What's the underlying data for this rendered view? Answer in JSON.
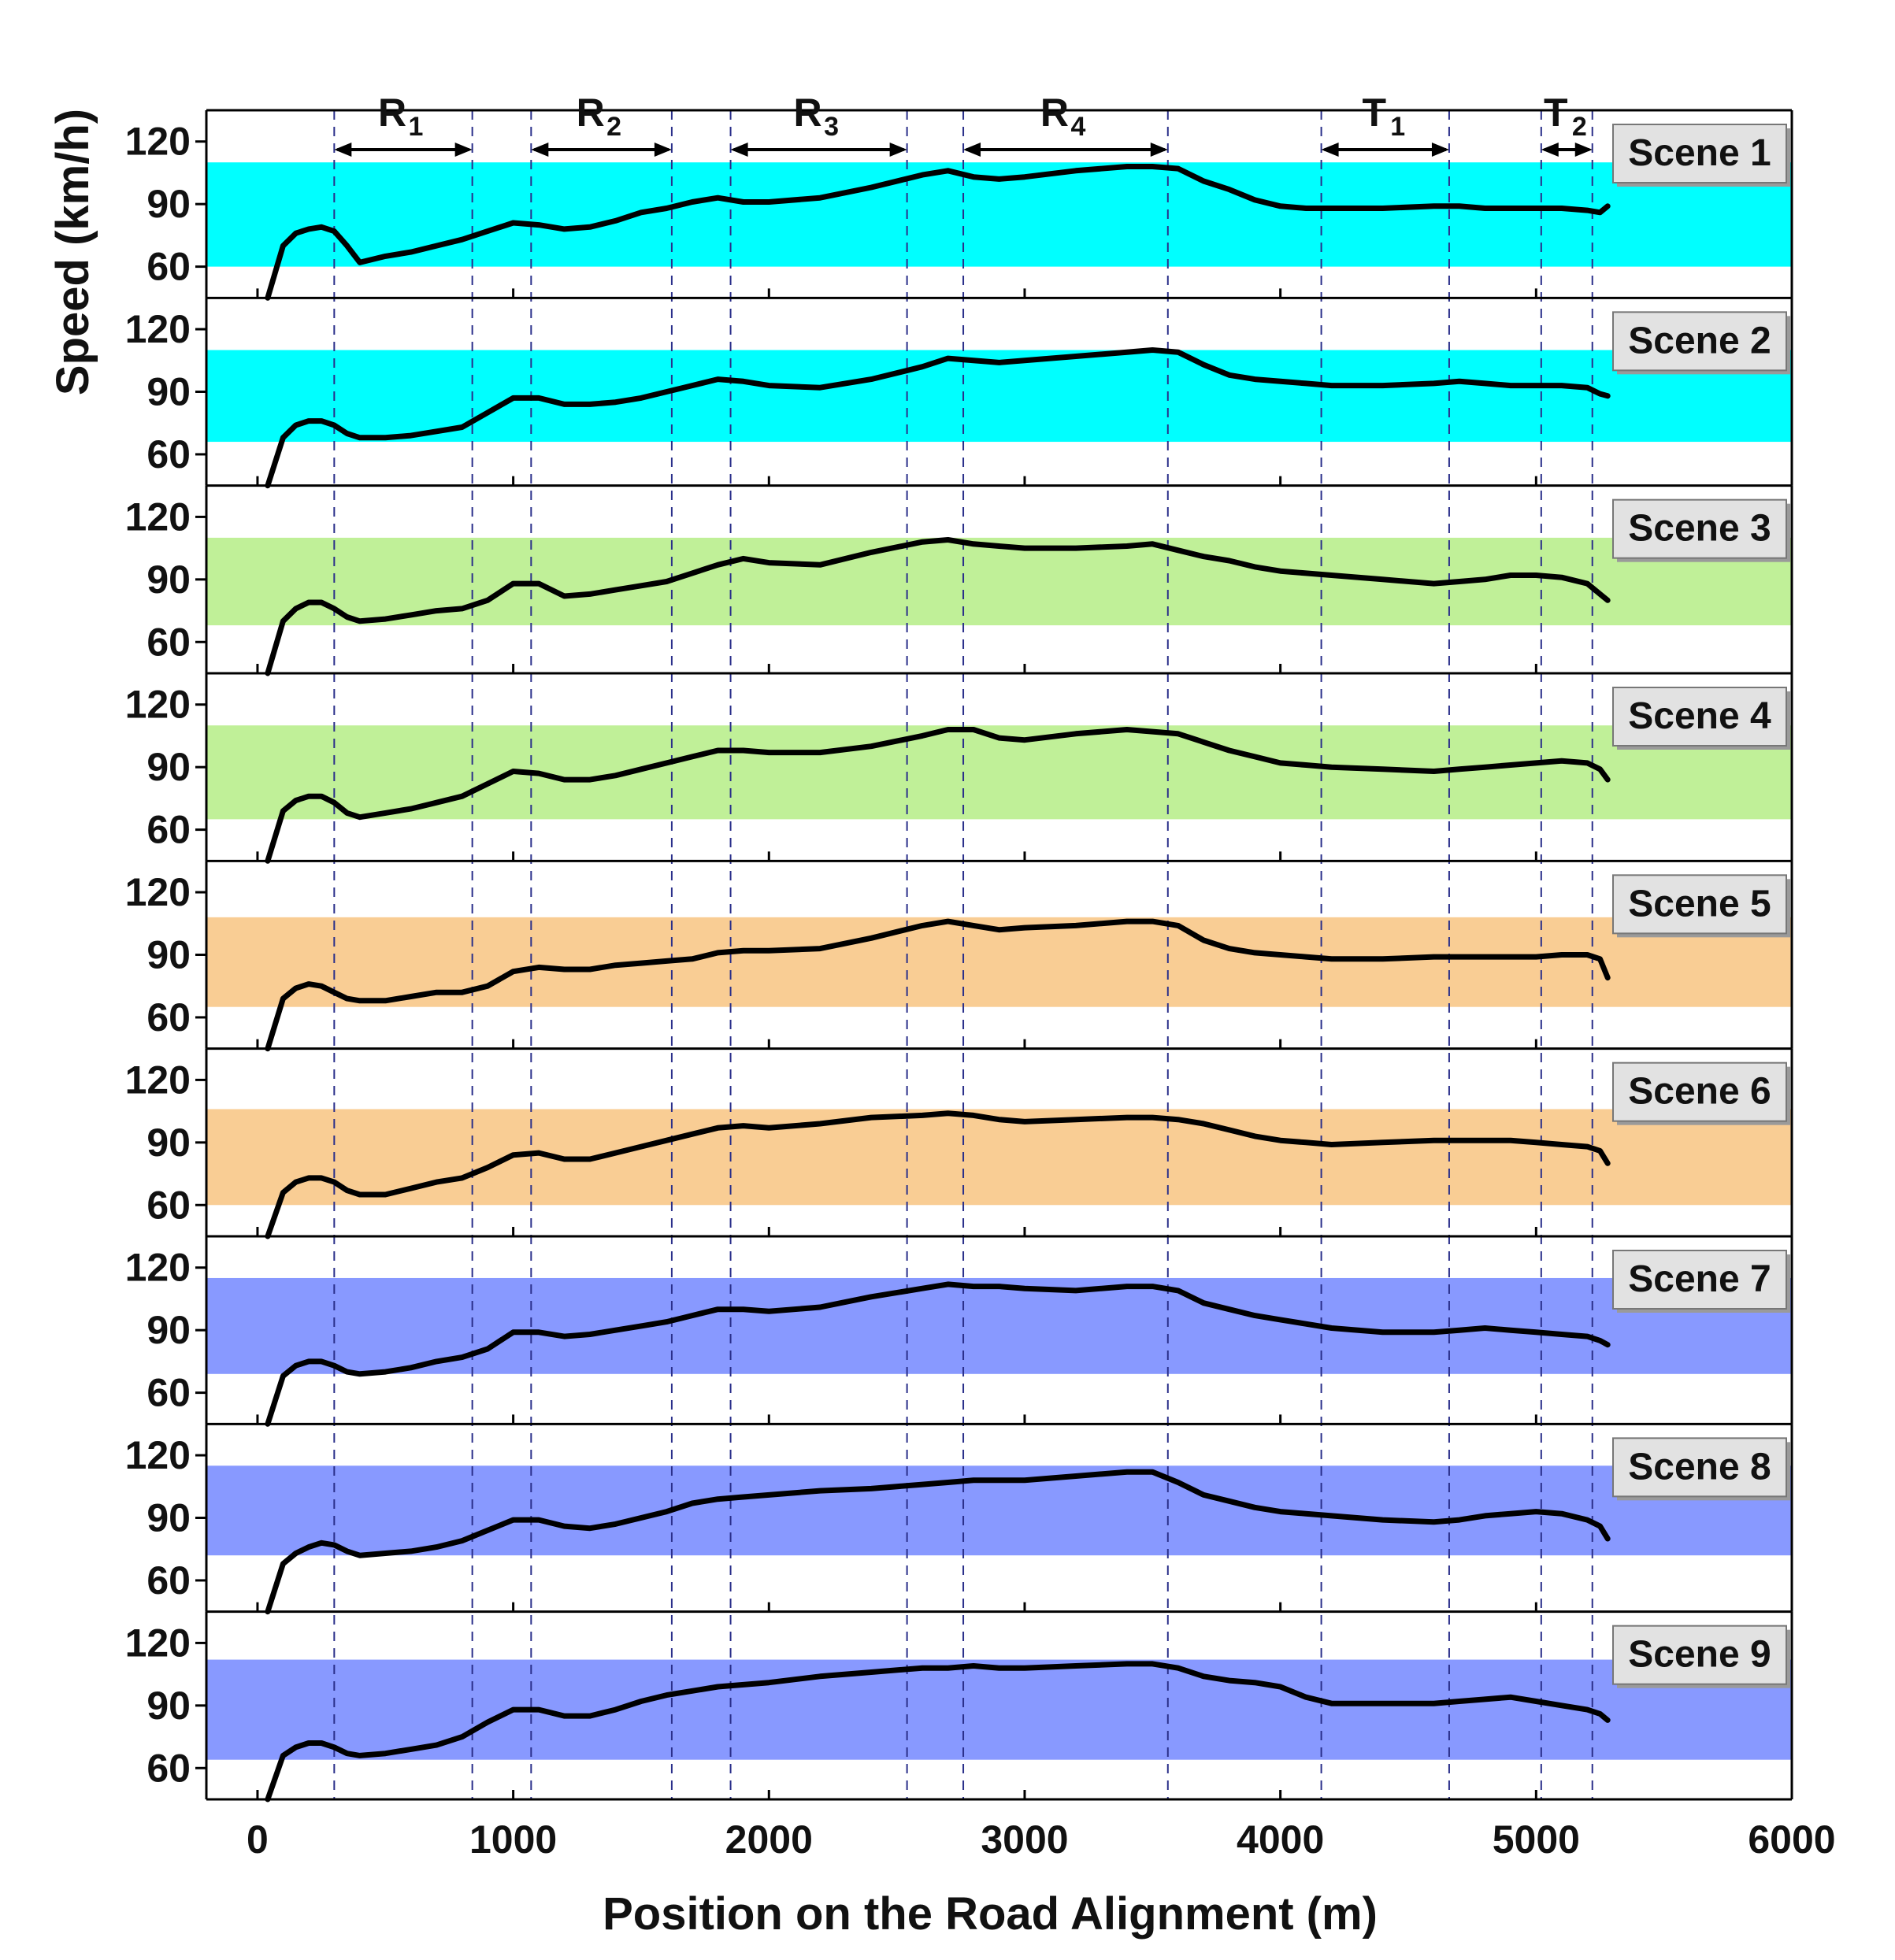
{
  "chart_data": {
    "type": "line",
    "xlabel": "Position on the Road Alignment (m)",
    "ylabel": "Speed (km/h)",
    "xlim": [
      -200,
      6000
    ],
    "xticks": [
      0,
      1000,
      2000,
      3000,
      4000,
      5000,
      6000
    ],
    "ylim": [
      45,
      135
    ],
    "yticks": [
      60,
      90,
      120
    ],
    "segment_boundaries": [
      300,
      840,
      1070,
      1620,
      1850,
      2540,
      2760,
      3560,
      4160,
      4660,
      5020,
      5220
    ],
    "segments": [
      {
        "name": "R",
        "sub": "1",
        "start": 300,
        "end": 840
      },
      {
        "name": "R",
        "sub": "2",
        "start": 1070,
        "end": 1620
      },
      {
        "name": "R",
        "sub": "3",
        "start": 1850,
        "end": 2540
      },
      {
        "name": "R",
        "sub": "4",
        "start": 2760,
        "end": 3560
      },
      {
        "name": "T",
        "sub": "1",
        "start": 4160,
        "end": 4660
      },
      {
        "name": "T",
        "sub": "2",
        "start": 5020,
        "end": 5220
      }
    ],
    "x": [
      40,
      100,
      150,
      200,
      250,
      300,
      350,
      400,
      500,
      600,
      700,
      800,
      900,
      1000,
      1100,
      1200,
      1300,
      1400,
      1500,
      1600,
      1700,
      1800,
      1900,
      2000,
      2200,
      2400,
      2600,
      2700,
      2800,
      2900,
      3000,
      3200,
      3400,
      3500,
      3600,
      3700,
      3800,
      3900,
      4000,
      4100,
      4200,
      4400,
      4600,
      4700,
      4800,
      4900,
      5000,
      5100,
      5200,
      5250,
      5280
    ],
    "panels": [
      {
        "label": "Scene 1",
        "band": [
          60,
          110
        ],
        "band_color": "#00ffff",
        "values": [
          45,
          70,
          76,
          78,
          79,
          77,
          70,
          62,
          65,
          67,
          70,
          73,
          77,
          81,
          80,
          78,
          79,
          82,
          86,
          88,
          91,
          93,
          91,
          91,
          93,
          98,
          104,
          106,
          103,
          102,
          103,
          106,
          108,
          108,
          107,
          101,
          97,
          92,
          89,
          88,
          88,
          88,
          89,
          89,
          88,
          88,
          88,
          88,
          87,
          86,
          89
        ]
      },
      {
        "label": "Scene 2",
        "band": [
          66,
          110
        ],
        "band_color": "#00ffff",
        "values": [
          45,
          68,
          74,
          76,
          76,
          74,
          70,
          68,
          68,
          69,
          71,
          73,
          80,
          87,
          87,
          84,
          84,
          85,
          87,
          90,
          93,
          96,
          95,
          93,
          92,
          96,
          102,
          106,
          105,
          104,
          105,
          107,
          109,
          110,
          109,
          103,
          98,
          96,
          95,
          94,
          93,
          93,
          94,
          95,
          94,
          93,
          93,
          93,
          92,
          89,
          88
        ]
      },
      {
        "label": "Scene 3",
        "band": [
          68,
          110
        ],
        "band_color": "#c0f098",
        "values": [
          45,
          70,
          76,
          79,
          79,
          76,
          72,
          70,
          71,
          73,
          75,
          76,
          80,
          88,
          88,
          82,
          83,
          85,
          87,
          89,
          93,
          97,
          100,
          98,
          97,
          103,
          108,
          109,
          107,
          106,
          105,
          105,
          106,
          107,
          104,
          101,
          99,
          96,
          94,
          93,
          92,
          90,
          88,
          89,
          90,
          92,
          92,
          91,
          88,
          83,
          80
        ]
      },
      {
        "label": "Scene 4",
        "band": [
          65,
          110
        ],
        "band_color": "#c0f098",
        "values": [
          45,
          69,
          74,
          76,
          76,
          73,
          68,
          66,
          68,
          70,
          73,
          76,
          82,
          88,
          87,
          84,
          84,
          86,
          89,
          92,
          95,
          98,
          98,
          97,
          97,
          100,
          105,
          108,
          108,
          104,
          103,
          106,
          108,
          107,
          106,
          102,
          98,
          95,
          92,
          91,
          90,
          89,
          88,
          89,
          90,
          91,
          92,
          93,
          92,
          89,
          84
        ]
      },
      {
        "label": "Scene 5",
        "band": [
          65,
          108
        ],
        "band_color": "#f9cd94",
        "values": [
          45,
          69,
          74,
          76,
          75,
          72,
          69,
          68,
          68,
          70,
          72,
          72,
          75,
          82,
          84,
          83,
          83,
          85,
          86,
          87,
          88,
          91,
          92,
          92,
          93,
          98,
          104,
          106,
          104,
          102,
          103,
          104,
          106,
          106,
          104,
          97,
          93,
          91,
          90,
          89,
          88,
          88,
          89,
          89,
          89,
          89,
          89,
          90,
          90,
          88,
          79
        ]
      },
      {
        "label": "Scene 6",
        "band": [
          60,
          106
        ],
        "band_color": "#f9cd94",
        "values": [
          45,
          66,
          71,
          73,
          73,
          71,
          67,
          65,
          65,
          68,
          71,
          73,
          78,
          84,
          85,
          82,
          82,
          85,
          88,
          91,
          94,
          97,
          98,
          97,
          99,
          102,
          103,
          104,
          103,
          101,
          100,
          101,
          102,
          102,
          101,
          99,
          96,
          93,
          91,
          90,
          89,
          90,
          91,
          91,
          91,
          91,
          90,
          89,
          88,
          86,
          80
        ]
      },
      {
        "label": "Scene 7",
        "band": [
          69,
          115
        ],
        "band_color": "#8899ff",
        "values": [
          45,
          68,
          73,
          75,
          75,
          73,
          70,
          69,
          70,
          72,
          75,
          77,
          81,
          89,
          89,
          87,
          88,
          90,
          92,
          94,
          97,
          100,
          100,
          99,
          101,
          106,
          110,
          112,
          111,
          111,
          110,
          109,
          111,
          111,
          109,
          103,
          100,
          97,
          95,
          93,
          91,
          89,
          89,
          90,
          91,
          90,
          89,
          88,
          87,
          85,
          83
        ]
      },
      {
        "label": "Scene 8",
        "band": [
          72,
          115
        ],
        "band_color": "#8899ff",
        "values": [
          45,
          68,
          73,
          76,
          78,
          77,
          74,
          72,
          73,
          74,
          76,
          79,
          84,
          89,
          89,
          86,
          85,
          87,
          90,
          93,
          97,
          99,
          100,
          101,
          103,
          104,
          106,
          107,
          108,
          108,
          108,
          110,
          112,
          112,
          107,
          101,
          98,
          95,
          93,
          92,
          91,
          89,
          88,
          89,
          91,
          92,
          93,
          92,
          89,
          86,
          80
        ]
      },
      {
        "label": "Scene 9",
        "band": [
          64,
          112
        ],
        "band_color": "#8899ff",
        "values": [
          45,
          66,
          70,
          72,
          72,
          70,
          67,
          66,
          67,
          69,
          71,
          75,
          82,
          88,
          88,
          85,
          85,
          88,
          92,
          95,
          97,
          99,
          100,
          101,
          104,
          106,
          108,
          108,
          109,
          108,
          108,
          109,
          110,
          110,
          108,
          104,
          102,
          101,
          99,
          94,
          91,
          91,
          91,
          92,
          93,
          94,
          92,
          90,
          88,
          86,
          83
        ]
      }
    ]
  }
}
